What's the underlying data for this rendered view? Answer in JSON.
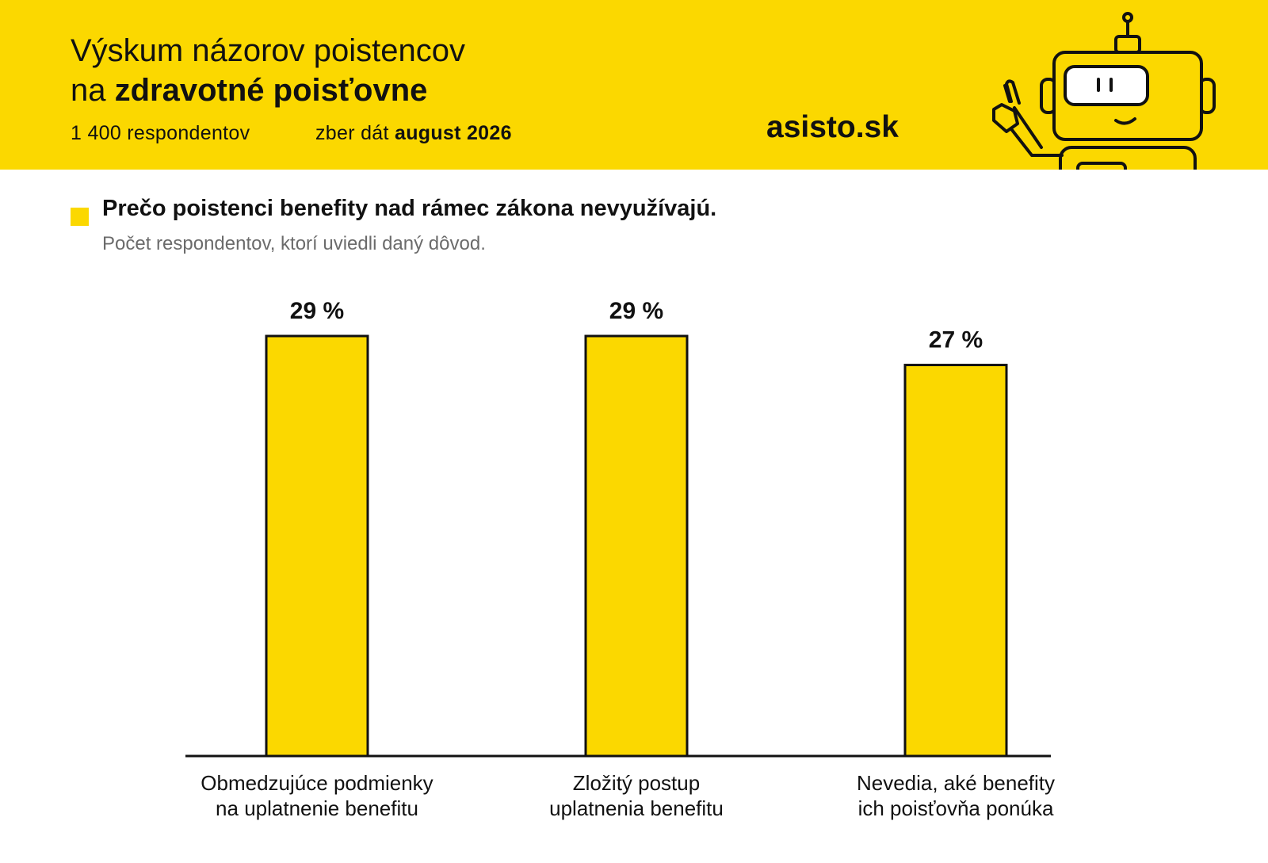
{
  "header": {
    "title_line1": "Výskum názorov poistencov",
    "title_line2_prefix": "na ",
    "title_line2_bold": "zdravotné poisťovne",
    "respondents": "1 400 respondentov",
    "date_prefix": "zber dát ",
    "date_bold": "august 2026",
    "brand": "asisto.sk",
    "mascot_icon": "robot-mascot-icon"
  },
  "colors": {
    "accent": "#FBD800",
    "bar_stroke": "#111111",
    "text": "#111111",
    "subtitle": "#6b6b6b"
  },
  "chart_data": {
    "type": "bar",
    "title": "Prečo poistenci benefity nad rámec zákona nevyužívajú.",
    "subtitle": "Počet respondentov, ktorí uviedli daný dôvod.",
    "categories": [
      "Obmedzujúce podmienky\nna uplatnenie benefitu",
      "Zložitý postup\nuplatnenia benefitu",
      "Nevedia, aké benefity\nich poisťovňa ponúka"
    ],
    "values": [
      29,
      29,
      27
    ],
    "value_labels": [
      "29 %",
      "29 %",
      "27 %"
    ],
    "unit": "%",
    "ylim": [
      0,
      29
    ],
    "grid": false,
    "legend": false
  }
}
